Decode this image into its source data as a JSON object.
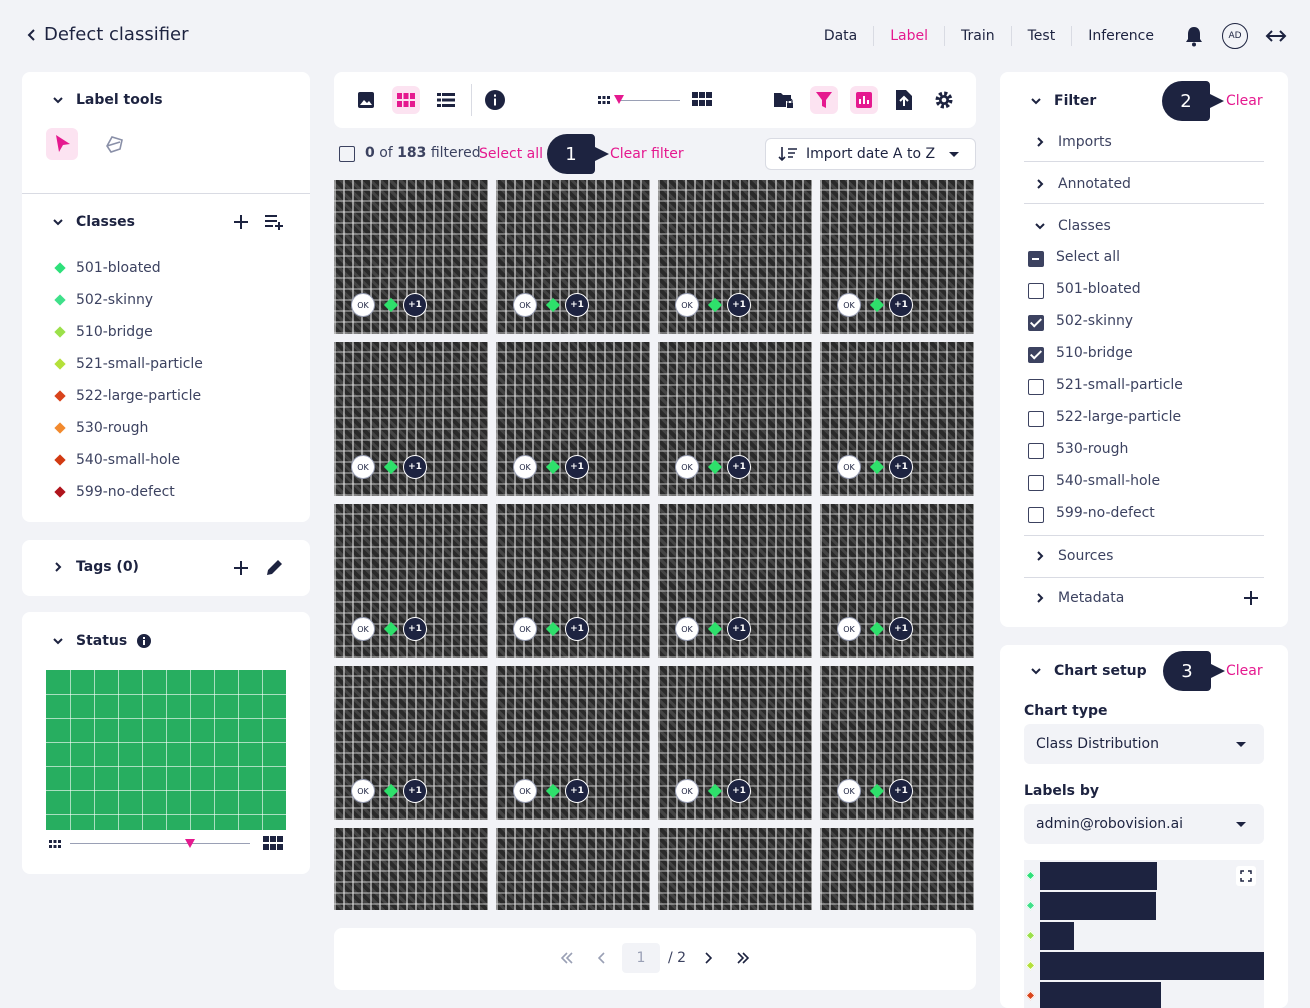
{
  "header": {
    "back_title": "Defect classifier",
    "tabs": [
      "Data",
      "Label",
      "Train",
      "Test",
      "Inference"
    ],
    "active_tab": "Label",
    "avatar_initials": "AD"
  },
  "colors": {
    "accent": "#e5198f",
    "navy": "#1d2340",
    "status_green": "#27ae60"
  },
  "label_tools": {
    "title": "Label tools"
  },
  "classes": {
    "title": "Classes",
    "items": [
      {
        "name": "501-bloated",
        "color": "#2ee07a"
      },
      {
        "name": "502-skinny",
        "color": "#3fe08a"
      },
      {
        "name": "510-bridge",
        "color": "#9be04a"
      },
      {
        "name": "521-small-particle",
        "color": "#b4e03a"
      },
      {
        "name": "522-large-particle",
        "color": "#d9441c"
      },
      {
        "name": "530-rough",
        "color": "#f28a2e"
      },
      {
        "name": "540-small-hole",
        "color": "#d23a12"
      },
      {
        "name": "599-no-defect",
        "color": "#b0141c"
      }
    ]
  },
  "tags": {
    "title": "Tags (0)"
  },
  "status": {
    "title": "Status"
  },
  "filter_bar": {
    "count_selected": "0",
    "count_of": "of",
    "count_total": "183",
    "count_suffix": "filtered",
    "select_all": "Select all",
    "clear_filter": "Clear filter",
    "sort_label": "Import date A to Z"
  },
  "callouts": [
    "1",
    "2",
    "3"
  ],
  "thumbnails": {
    "ok_label": "OK",
    "extra_label": "+1"
  },
  "pagination": {
    "current": "1",
    "total": "/ 2"
  },
  "filter_panel": {
    "title": "Filter",
    "clear": "Clear",
    "sections": [
      "Imports",
      "Annotated",
      "Classes",
      "Sources",
      "Metadata"
    ],
    "select_all": "Select all",
    "classes": [
      {
        "name": "501-bloated",
        "checked": false
      },
      {
        "name": "502-skinny",
        "checked": true
      },
      {
        "name": "510-bridge",
        "checked": true
      },
      {
        "name": "521-small-particle",
        "checked": false
      },
      {
        "name": "522-large-particle",
        "checked": false
      },
      {
        "name": "530-rough",
        "checked": false
      },
      {
        "name": "540-small-hole",
        "checked": false
      },
      {
        "name": "599-no-defect",
        "checked": false
      }
    ]
  },
  "chart_setup": {
    "title": "Chart setup",
    "clear": "Clear",
    "chart_type_label": "Chart type",
    "chart_type_value": "Class Distribution",
    "labels_by_label": "Labels by",
    "labels_by_value": "admin@robovision.ai"
  },
  "chart_data": {
    "type": "bar",
    "orientation": "horizontal",
    "series_colors": [
      "#2ee07a",
      "#3fe08a",
      "#9be04a",
      "#b4e03a",
      "#d9441c"
    ],
    "values": [
      117,
      116,
      34,
      224,
      121
    ]
  }
}
